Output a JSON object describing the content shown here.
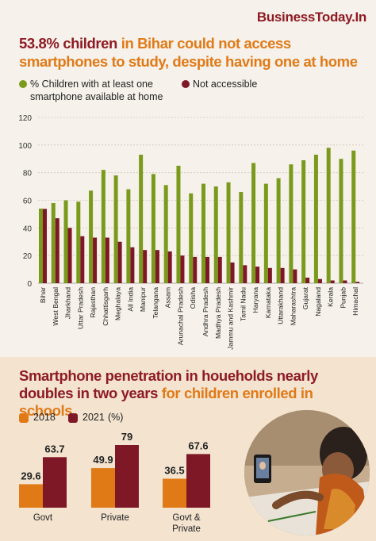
{
  "brand": "BusinessToday.In",
  "headline": {
    "part1": "53.8% children",
    "part2": " in Bihar could not access smartphones to study, despite having one at home"
  },
  "colors": {
    "green": "#7a9a1c",
    "maroon": "#7e1726",
    "orange": "#e07a17",
    "title": "#8e1b24"
  },
  "chart_data": [
    {
      "type": "bar",
      "title": "",
      "xlabel": "",
      "ylabel": "",
      "ylim": [
        0,
        120
      ],
      "yticks": [
        0,
        20,
        40,
        60,
        80,
        100,
        120
      ],
      "grid": true,
      "legend_position": "top-left",
      "categories": [
        "Bihar",
        "West Bengal",
        "Jharkhand",
        "Uttar Pradesh",
        "Rajasthan",
        "Chhattisgarh",
        "Meghalaya",
        "All India",
        "Manipur",
        "Telangana",
        "Assam",
        "Arunachal Pradesh",
        "Odisha",
        "Andhra Pradesh",
        "Madhya Pradesh",
        "Jammu and Kashmir",
        "Tamil Nadu",
        "Haryana",
        "Karnataka",
        "Uttarakhand",
        "Maharashtra",
        "Gujarat",
        "Nagaland",
        "Kerala",
        "Punjab",
        "Himachal"
      ],
      "series": [
        {
          "name": "% Children with at least one smartphone available at home",
          "color": "#7a9a1c",
          "values": [
            54,
            58,
            60,
            59,
            67,
            82,
            78,
            68,
            93,
            79,
            71,
            85,
            65,
            72,
            70,
            73,
            66,
            87,
            72,
            76,
            86,
            89,
            93,
            98,
            90,
            96
          ]
        },
        {
          "name": "Not accessible",
          "color": "#7e1726",
          "values": [
            53.8,
            47,
            40,
            34,
            33,
            33,
            30,
            26,
            24,
            24,
            23,
            20,
            19,
            19,
            19,
            15,
            13,
            12,
            11,
            11,
            10,
            4,
            3,
            2,
            2,
            1
          ]
        }
      ]
    },
    {
      "type": "bar",
      "title": "",
      "categories": [
        "Govt",
        "Private",
        "Govt & Private"
      ],
      "unit": "(%)",
      "series": [
        {
          "name": "2018",
          "color": "#e07a17",
          "values": [
            29.6,
            49.9,
            36.5
          ]
        },
        {
          "name": "2021",
          "color": "#7e1726",
          "values": [
            63.7,
            79,
            67.6
          ]
        }
      ],
      "labels": [
        [
          "29.6",
          "63.7"
        ],
        [
          "49.9",
          "79"
        ],
        [
          "36.5",
          "67.6"
        ]
      ]
    }
  ],
  "section2": {
    "part1": "Smartphone penetration in houeholds nearly doubles in two years",
    "part2": " for children enrolled in schools"
  },
  "legend2": {
    "y2018": "2018",
    "y2021": "2021",
    "unit": "(%)"
  },
  "photo": {
    "icon": "child-with-phone-photo"
  }
}
